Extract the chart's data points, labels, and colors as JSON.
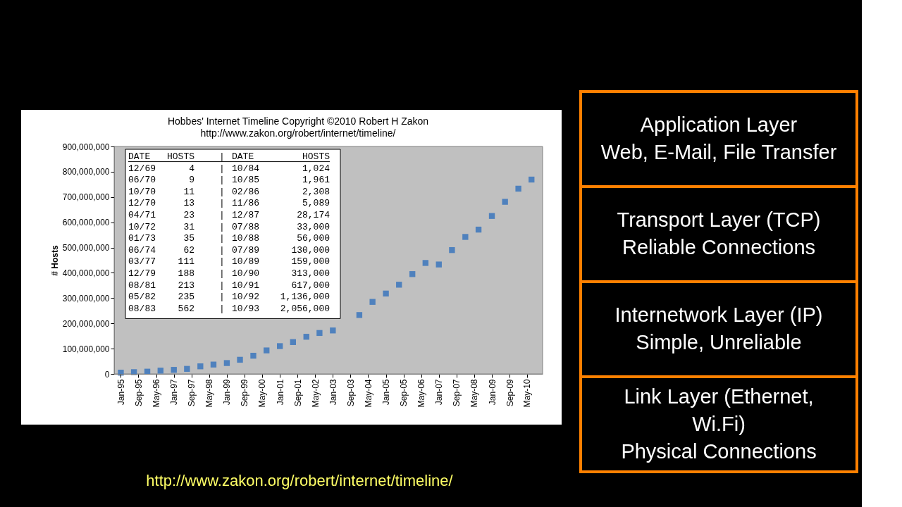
{
  "chart_data": [
    {
      "type": "scatter",
      "title": "Hobbes' Internet Timeline  Copyright ©2010 Robert H Zakon",
      "subtitle": "http://www.zakon.org/robert/internet/timeline/",
      "ylabel": "# Hosts",
      "x": [
        "1995-01",
        "1995-07",
        "1996-01",
        "1996-07",
        "1997-01",
        "1997-07",
        "1998-01",
        "1998-07",
        "1999-01",
        "1999-07",
        "2000-01",
        "2000-07",
        "2001-01",
        "2001-07",
        "2002-01",
        "2002-07",
        "2003-01",
        "2004-01",
        "2004-07",
        "2005-01",
        "2005-07",
        "2006-01",
        "2006-07",
        "2007-01",
        "2007-07",
        "2008-01",
        "2008-07",
        "2009-01",
        "2009-07",
        "2010-01",
        "2010-07"
      ],
      "series": [
        {
          "color": "#4f81bd",
          "values": [
            5000000,
            7000000,
            9000000,
            13000000,
            16000000,
            20000000,
            30000000,
            37000000,
            43000000,
            56000000,
            72000000,
            93000000,
            110000000,
            126000000,
            147000000,
            162000000,
            172000000,
            233000000,
            285000000,
            318000000,
            353000000,
            395000000,
            439000000,
            433000000,
            490000000,
            542000000,
            571000000,
            625000000,
            681000000,
            733000000,
            769000000
          ]
        }
      ],
      "marker": "square",
      "grid": false,
      "legend": false,
      "xlim": [
        "1994-10",
        "2010-12"
      ],
      "xticks": [
        {
          "value": "1995-01",
          "label": "Jan-95"
        },
        {
          "value": "1995-09",
          "label": "Sep-95"
        },
        {
          "value": "1996-05",
          "label": "May-96"
        },
        {
          "value": "1997-01",
          "label": "Jan-97"
        },
        {
          "value": "1997-09",
          "label": "Sep-97"
        },
        {
          "value": "1998-05",
          "label": "May-98"
        },
        {
          "value": "1999-01",
          "label": "Jan-99"
        },
        {
          "value": "1999-09",
          "label": "Sep-99"
        },
        {
          "value": "2000-05",
          "label": "May-00"
        },
        {
          "value": "2001-01",
          "label": "Jan-01"
        },
        {
          "value": "2001-09",
          "label": "Sep-01"
        },
        {
          "value": "2002-05",
          "label": "May-02"
        },
        {
          "value": "2003-01",
          "label": "Jan-03"
        },
        {
          "value": "2003-09",
          "label": "Sep-03"
        },
        {
          "value": "2004-05",
          "label": "May-04"
        },
        {
          "value": "2005-01",
          "label": "Jan-05"
        },
        {
          "value": "2005-09",
          "label": "Sep-05"
        },
        {
          "value": "2006-05",
          "label": "May-06"
        },
        {
          "value": "2007-01",
          "label": "Jan-07"
        },
        {
          "value": "2007-09",
          "label": "Sep-07"
        },
        {
          "value": "2008-05",
          "label": "May-08"
        },
        {
          "value": "2009-01",
          "label": "Jan-09"
        },
        {
          "value": "2009-09",
          "label": "Sep-09"
        },
        {
          "value": "2010-05",
          "label": "May-10"
        }
      ],
      "ylim": [
        0,
        900000000
      ],
      "yticks": [
        0,
        {
          "value": 100000000,
          "label": "100,000,000"
        },
        {
          "value": 200000000,
          "label": "200,000,000"
        },
        {
          "value": 300000000,
          "label": "300,000,000"
        },
        {
          "value": 400000000,
          "label": "400,000,000"
        },
        {
          "value": 500000000,
          "label": "500,000,000"
        },
        {
          "value": 600000000,
          "label": "600,000,000"
        },
        {
          "value": 700000000,
          "label": "700,000,000"
        },
        {
          "value": 800000000,
          "label": "800,000,000"
        },
        {
          "value": 900000000,
          "label": "900,000,000"
        }
      ],
      "annotations": [
        "http://www.zakon.org/robert/internet/timeline/",
        "DATE",
        "HOSTS",
        "|",
        "DATE",
        "HOSTS",
        "12/69",
        "4",
        "|",
        "10/84",
        "1,024",
        "06/70",
        "9",
        "|",
        "10/85",
        "1,961",
        "10/70",
        "11",
        "|",
        "02/86",
        "2,308",
        "12/70",
        "13",
        "|",
        "11/86",
        "5,089",
        "04/71",
        "23",
        "|",
        "12/87",
        "28,174",
        "10/72",
        "31",
        "|",
        "07/88",
        "33,000",
        "01/73",
        "35",
        "|",
        "10/88",
        "56,000",
        "06/74",
        "62",
        "|",
        "07/89",
        "130,000",
        "03/77",
        "111",
        "|",
        "10/89",
        "159,000",
        "12/79",
        "188",
        "|",
        "10/90",
        "313,000",
        "08/81",
        "213",
        "|",
        "10/91",
        "617,000",
        "05/82",
        "235",
        "|",
        "10/92",
        "1,136,000",
        "08/83",
        "562",
        "|",
        "10/93",
        "2,056,000"
      ]
    },
    {
      "type": "other",
      "annotations": [
        "Application Layer\nWeb, E-Mail, File Transfer",
        "Transport Layer (TCP)\nReliable Connections",
        "Internetwork Layer (IP)\nSimple, Unreliable",
        "Link Layer (Ethernet,\nWi.Fi)\nPhysical Connections"
      ]
    }
  ]
}
